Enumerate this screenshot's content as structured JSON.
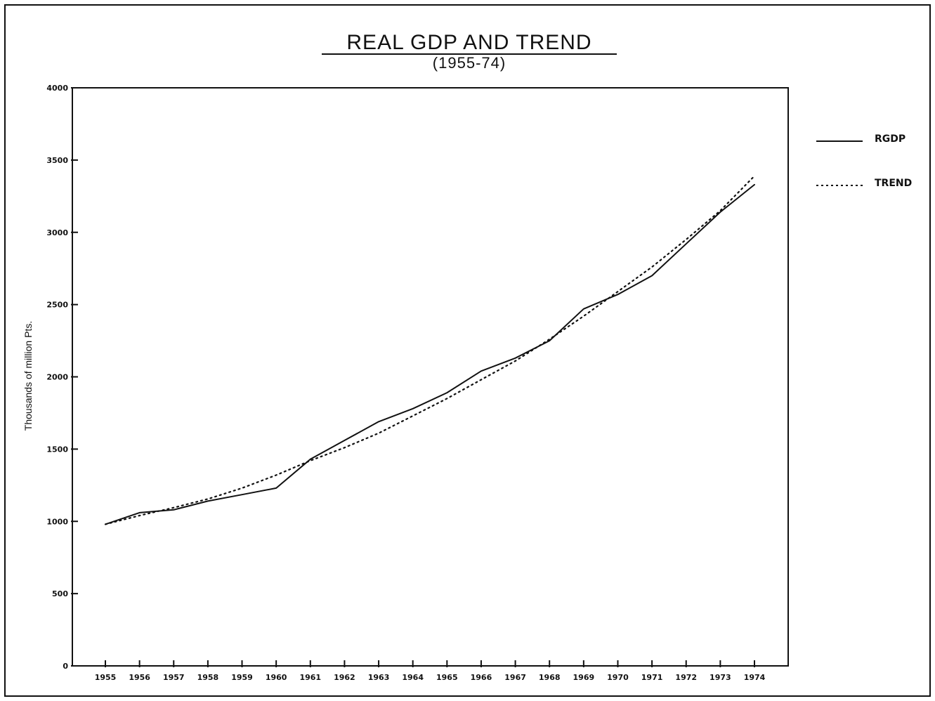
{
  "chart_data": {
    "type": "line",
    "title": "REAL GDP AND TREND",
    "subtitle": "(1955-74)",
    "ylabel": "Thousands of million Pts.",
    "xlabel": "",
    "x": [
      1955,
      1956,
      1957,
      1958,
      1959,
      1960,
      1961,
      1962,
      1963,
      1964,
      1965,
      1966,
      1967,
      1968,
      1969,
      1970,
      1971,
      1972,
      1973,
      1974
    ],
    "x_tick_labels": [
      "1955",
      "1956",
      "1957",
      "1958",
      "1959",
      "1960",
      "1961",
      "1962",
      "1963",
      "1964",
      "1965",
      "1966",
      "1967",
      "1968",
      "1969",
      "1970",
      "1971",
      "1972",
      "1973",
      "1974"
    ],
    "y_ticks": [
      0,
      500,
      1000,
      1500,
      2000,
      2500,
      3000,
      3500,
      4000
    ],
    "y_tick_labels": [
      "0",
      "500",
      "1000",
      "1500",
      "2000",
      "2500",
      "3000",
      "3500",
      "4000"
    ],
    "ylim": [
      0,
      4000
    ],
    "grid": false,
    "legend_position": "right",
    "series": [
      {
        "name": "RGDP",
        "style": "solid",
        "color": "#111111",
        "values": [
          980,
          1060,
          1080,
          1140,
          1185,
          1230,
          1430,
          1560,
          1690,
          1780,
          1890,
          2040,
          2130,
          2250,
          2470,
          2570,
          2700,
          2920,
          3140,
          3330
        ]
      },
      {
        "name": "TREND",
        "style": "dotted",
        "color": "#111111",
        "values": [
          980,
          1040,
          1095,
          1155,
          1230,
          1320,
          1420,
          1510,
          1610,
          1730,
          1850,
          1980,
          2110,
          2260,
          2420,
          2590,
          2760,
          2950,
          3150,
          3390
        ]
      }
    ]
  }
}
